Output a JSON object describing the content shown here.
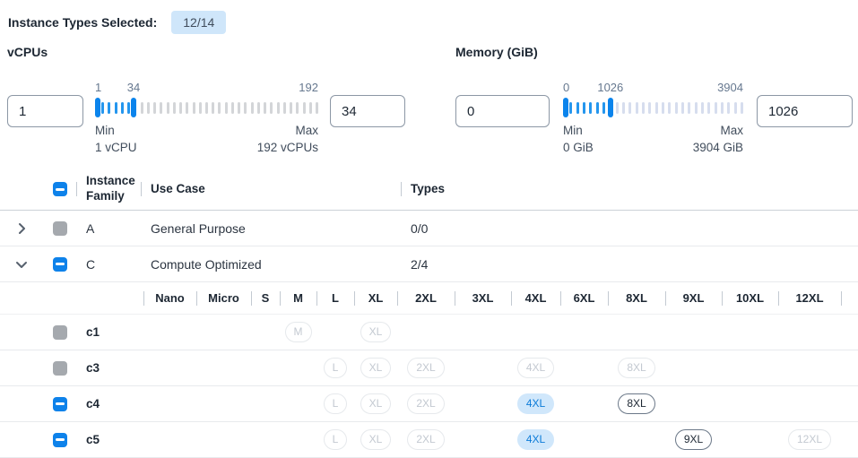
{
  "header": {
    "label": "Instance Types Selected:",
    "badge": "12/14"
  },
  "filters": {
    "vcpus": {
      "title": "vCPUs",
      "from_value": "1",
      "to_value": "34",
      "scale_labels": [
        "1",
        "34",
        "192"
      ],
      "min_label": "Min",
      "min_caption": "1 vCPU",
      "max_label": "Max",
      "max_caption": "192 vCPUs",
      "range_min": 1,
      "range_max": 192,
      "from": 1,
      "to": 34
    },
    "memory": {
      "title": "Memory (GiB)",
      "from_value": "0",
      "to_value": "1026",
      "scale_labels": [
        "0",
        "1026",
        "3904"
      ],
      "min_label": "Min",
      "min_caption": "0 GiB",
      "max_label": "Max",
      "max_caption": "3904 GiB",
      "range_min": 0,
      "range_max": 3904,
      "from": 0,
      "to": 1026
    }
  },
  "colors": {
    "accent_blue": "#0e82ea",
    "slider_active_tick": "#2496ee",
    "slider_inactive_tick_vcpu": "#d3d5d8",
    "slider_inactive_tick_memory": "#d6ddee",
    "badge_selected_bg": "#d0e7fb",
    "badge_selected_text": "#0c7bd8",
    "count_badge_bg": "#cfe6fa",
    "disabled_checkbox": "#a5a9ae"
  },
  "table": {
    "columns": {
      "family": "Instance Family",
      "use_case": "Use Case",
      "types": "Types"
    },
    "family_rows": [
      {
        "family": "A",
        "use_case": "General Purpose",
        "types": "0/0",
        "expanded": false,
        "checkbox": "disabled"
      },
      {
        "family": "C",
        "use_case": "Compute Optimized",
        "types": "2/4",
        "expanded": true,
        "checkbox": "indeterminate"
      }
    ],
    "size_columns": [
      "Nano",
      "Micro",
      "S",
      "M",
      "L",
      "XL",
      "2XL",
      "3XL",
      "4XL",
      "6XL",
      "8XL",
      "9XL",
      "10XL",
      "12XL"
    ],
    "instance_rows": [
      {
        "name": "c1",
        "checkbox": "disabled",
        "badges": [
          {
            "label": "M",
            "state": "disabled"
          },
          {
            "label": "XL",
            "state": "disabled"
          }
        ]
      },
      {
        "name": "c3",
        "checkbox": "disabled",
        "badges": [
          {
            "label": "L",
            "state": "disabled"
          },
          {
            "label": "XL",
            "state": "disabled"
          },
          {
            "label": "2XL",
            "state": "disabled"
          },
          {
            "label": "4XL",
            "state": "disabled"
          },
          {
            "label": "8XL",
            "state": "disabled"
          }
        ]
      },
      {
        "name": "c4",
        "checkbox": "indeterminate",
        "badges": [
          {
            "label": "L",
            "state": "disabled"
          },
          {
            "label": "XL",
            "state": "disabled"
          },
          {
            "label": "2XL",
            "state": "disabled"
          },
          {
            "label": "4XL",
            "state": "selected"
          },
          {
            "label": "8XL",
            "state": "enabled"
          }
        ]
      },
      {
        "name": "c5",
        "checkbox": "indeterminate",
        "badges": [
          {
            "label": "L",
            "state": "disabled"
          },
          {
            "label": "XL",
            "state": "disabled"
          },
          {
            "label": "2XL",
            "state": "disabled"
          },
          {
            "label": "4XL",
            "state": "selected"
          },
          {
            "label": "9XL",
            "state": "enabled"
          },
          {
            "label": "12XL",
            "state": "disabled"
          }
        ]
      }
    ]
  }
}
